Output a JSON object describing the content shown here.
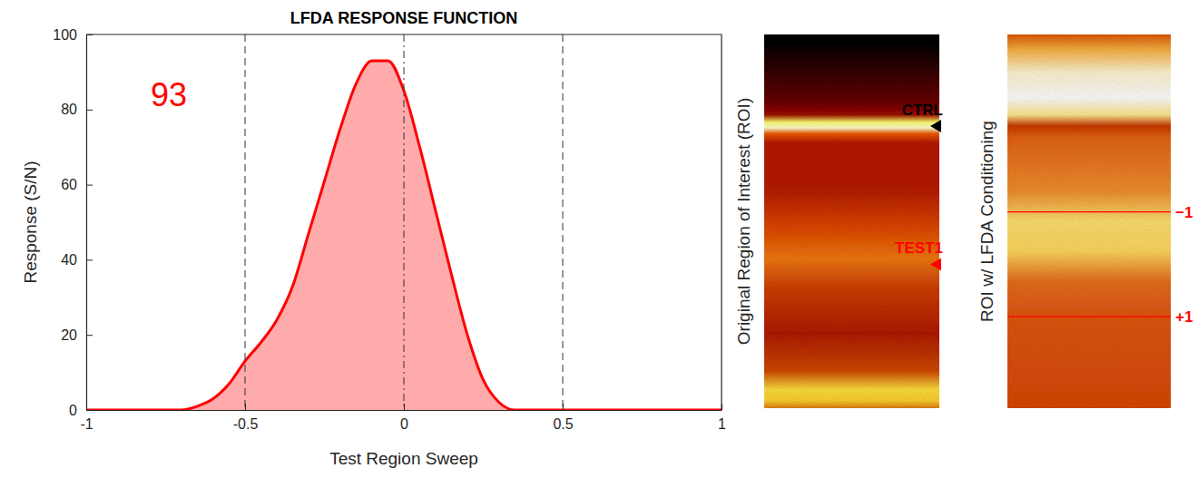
{
  "chart_data": {
    "type": "area",
    "title": "LFDA RESPONSE FUNCTION",
    "x_label": "Test Region Sweep",
    "y_label": "Response (S/N)",
    "x": [
      -1,
      -0.95,
      -0.9,
      -0.85,
      -0.8,
      -0.75,
      -0.7,
      -0.65,
      -0.6,
      -0.55,
      -0.5,
      -0.45,
      -0.4,
      -0.35,
      -0.3,
      -0.25,
      -0.2,
      -0.15,
      -0.1,
      -0.05,
      0,
      0.05,
      0.1,
      0.15,
      0.2,
      0.25,
      0.3,
      0.35,
      0.4,
      0.45,
      0.5,
      0.55,
      0.6,
      0.65,
      0.7,
      0.75,
      0.8,
      0.85,
      0.9,
      0.95,
      1
    ],
    "values": [
      0,
      0,
      0,
      0,
      0,
      0,
      0,
      1,
      3,
      7,
      13,
      18,
      24,
      33,
      47,
      61,
      75,
      87,
      93,
      93,
      85,
      70,
      53,
      36,
      20,
      8,
      2,
      0,
      0,
      0,
      0,
      0,
      0,
      0,
      0,
      0,
      0,
      0,
      0,
      0,
      0
    ],
    "color": "#ff0000",
    "xlim": [
      -1,
      1
    ],
    "xticks": [
      -1,
      -0.5,
      0,
      0.5,
      1
    ],
    "ylim": [
      0,
      100
    ],
    "yticks": [
      0,
      20,
      40,
      60,
      80,
      100
    ],
    "grid": false,
    "vlines": [
      {
        "x": -0.5,
        "line_style": "dashed"
      },
      {
        "x": 0,
        "line_style": "dashdot"
      },
      {
        "x": 0.5,
        "line_style": "dashed"
      }
    ],
    "annotations": [
      {
        "text": "93"
      }
    ]
  },
  "images": [
    {
      "title": "Original Region of Interest (ROI)",
      "markers": [
        {
          "label": "CTRL",
          "color": "#000000"
        },
        {
          "label": "TEST1",
          "color": "#ff0000"
        }
      ]
    },
    {
      "title": "ROI w/ LFDA Conditioning",
      "markers": [
        {
          "label": "−1",
          "color": "#ff0000"
        },
        {
          "label": "+1",
          "color": "#ff0000"
        }
      ]
    }
  ]
}
